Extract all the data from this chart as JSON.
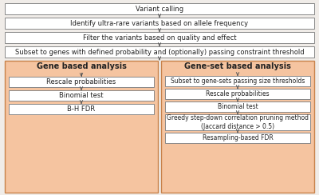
{
  "fig_bg": "#f0ece8",
  "box_white": "#ffffff",
  "orange_bg": "#f5c4a0",
  "orange_edge": "#c8824a",
  "box_edge": "#888888",
  "text_color": "#222222",
  "arrow_color": "#555555",
  "top_boxes": [
    "Variant calling",
    "Identify ultra-rare variants based on allele frequency",
    "Filter the variants based on quality and effect",
    "Subset to genes with defined probability and (optionally) passing constraint threshold"
  ],
  "left_title": "Gene based analysis",
  "right_title": "Gene-set based analysis",
  "left_boxes": [
    "Rescale probabilities",
    "Binomial test",
    "B-H FDR"
  ],
  "right_boxes": [
    "Subset to gene-sets passing size thresholds",
    "Rescale probabilities",
    "Binomial test",
    "Greedy step-down correlation pruning method\n(Jaccard distance > 0.5)",
    "Resampling-based FDR"
  ]
}
